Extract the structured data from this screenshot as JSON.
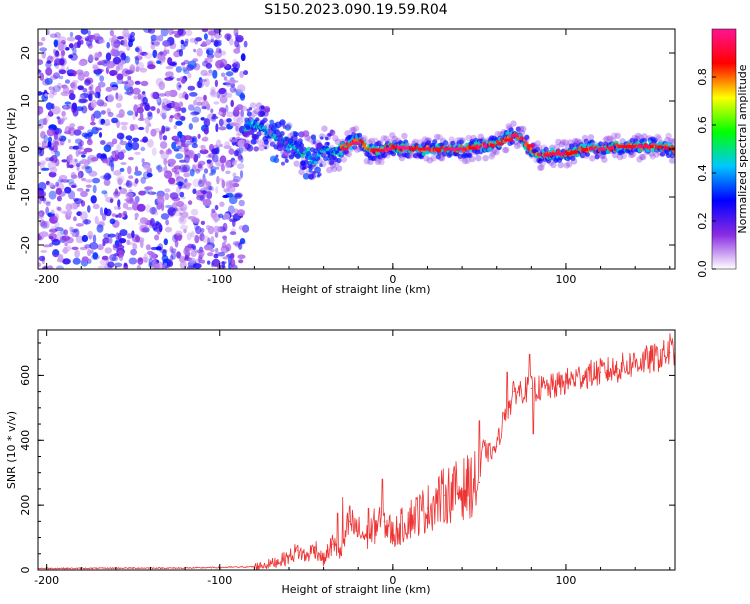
{
  "chart_data": [
    {
      "type": "heatmap",
      "title": "S150.2023.090.19.59.R04",
      "xlabel": "Height of straight line (km)",
      "ylabel": "Frequency (Hz)",
      "xlim": [
        -205,
        163
      ],
      "ylim": [
        -25,
        25
      ],
      "x_ticks": [
        -200,
        -100,
        0,
        100
      ],
      "x_tick_labels": [
        "-200",
        "-100",
        "0",
        "100"
      ],
      "y_ticks": [
        -20,
        -10,
        0,
        10,
        20
      ],
      "y_tick_labels": [
        "-20",
        "-10",
        "0",
        "10",
        "20"
      ],
      "colorbar": {
        "label": "Normalized spectral amplitude",
        "range": [
          0,
          1
        ],
        "ticks": [
          0,
          0.2,
          0.4,
          0.6,
          0.8
        ],
        "tick_labels": [
          "0.0",
          "0.2",
          "0.4",
          "0.6",
          "0.8"
        ],
        "colors": [
          "#ffffff",
          "#8a2be2",
          "#0000ff",
          "#00c8ff",
          "#00ff00",
          "#ffff00",
          "#ff0000",
          "#ff1493"
        ]
      },
      "noise_region_x": [
        -205,
        -85
      ],
      "ridge": {
        "x": [
          -85,
          -80,
          -75,
          -70,
          -65,
          -60,
          -55,
          -50,
          -45,
          -40,
          -35,
          -30,
          -25,
          -20,
          -15,
          -10,
          0,
          10,
          20,
          30,
          40,
          50,
          60,
          70,
          75,
          80,
          85,
          90,
          100,
          110,
          120,
          130,
          140,
          150,
          163
        ],
        "freq": [
          5,
          5,
          4,
          3,
          2,
          1,
          0,
          -1,
          -2,
          0,
          -1,
          0,
          1,
          2,
          0,
          -0.5,
          0.5,
          0,
          0,
          0,
          0,
          0.5,
          1,
          3,
          2,
          -0.5,
          -1.5,
          -1,
          -1,
          0,
          0,
          0.5,
          0.5,
          0.5,
          0
        ]
      }
    },
    {
      "type": "line",
      "xlabel": "Height of straight line (km)",
      "ylabel": "SNR (10 * v/v)",
      "xlim": [
        -205,
        163
      ],
      "ylim": [
        0,
        740
      ],
      "x_ticks": [
        -200,
        -100,
        0,
        100
      ],
      "x_tick_labels": [
        "-200",
        "-100",
        "0",
        "100"
      ],
      "y_ticks": [
        0,
        200,
        400,
        600
      ],
      "y_tick_labels": [
        "0",
        "200",
        "400",
        "600"
      ],
      "color": "#ee3333",
      "series": [
        {
          "name": "SNR",
          "x": [
            -205,
            -180,
            -150,
            -120,
            -100,
            -80,
            -70,
            -60,
            -55,
            -50,
            -45,
            -40,
            -35,
            -30,
            -25,
            -20,
            -15,
            -10,
            -5,
            0,
            10,
            20,
            30,
            40,
            50,
            52,
            55,
            60,
            65,
            68,
            70,
            80,
            90,
            100,
            110,
            120,
            130,
            140,
            150,
            160,
            163
          ],
          "y": [
            5,
            5,
            6,
            6,
            8,
            10,
            20,
            40,
            60,
            40,
            70,
            30,
            80,
            50,
            150,
            120,
            100,
            140,
            150,
            110,
            160,
            190,
            230,
            250,
            270,
            380,
            360,
            380,
            490,
            510,
            550,
            560,
            560,
            580,
            600,
            610,
            620,
            640,
            650,
            670,
            680
          ]
        }
      ],
      "spikes": [
        {
          "x": -29,
          "y": 225
        },
        {
          "x": -32,
          "y": 175
        },
        {
          "x": -23,
          "y": 165
        },
        {
          "x": -14,
          "y": 190
        },
        {
          "x": -6,
          "y": 280
        },
        {
          "x": 50,
          "y": 460
        },
        {
          "x": 58,
          "y": 380
        },
        {
          "x": 66,
          "y": 610
        },
        {
          "x": 79,
          "y": 665
        },
        {
          "x": 81,
          "y": 420
        },
        {
          "x": 160,
          "y": 730
        }
      ]
    }
  ]
}
